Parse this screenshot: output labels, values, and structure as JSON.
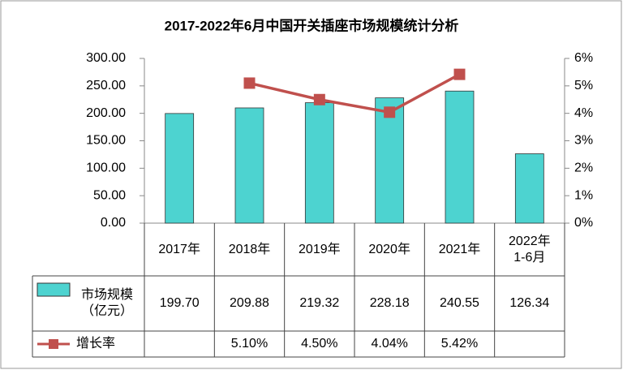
{
  "chart_data": {
    "type": "bar_line_table",
    "title": "2017-2022年6月中国开关插座市场规模统计分析",
    "categories": [
      "2017年",
      "2018年",
      "2019年",
      "2020年",
      "2021年",
      "2022年1-6月"
    ],
    "series": [
      {
        "name": "市场规模（亿元）",
        "type": "bar",
        "color": "#4dd3d0",
        "values": [
          199.7,
          209.88,
          219.32,
          228.18,
          240.55,
          126.34
        ],
        "value_labels": [
          "199.70",
          "209.88",
          "219.32",
          "228.18",
          "240.55",
          "126.34"
        ]
      },
      {
        "name": "增长率",
        "type": "line",
        "axis": "y2",
        "color": "#c0504d",
        "values": [
          null,
          5.1,
          4.5,
          4.04,
          5.42,
          null
        ],
        "value_labels": [
          null,
          "5.10%",
          "4.50%",
          "4.04%",
          "5.42%",
          null
        ]
      }
    ],
    "ylim": [
      0,
      300
    ],
    "yticks": [
      {
        "value": 0,
        "label": "0.00"
      },
      {
        "value": 50,
        "label": "50.00"
      },
      {
        "value": 100,
        "label": "100.00"
      },
      {
        "value": 150,
        "label": "150.00"
      },
      {
        "value": 200,
        "label": "200.00"
      },
      {
        "value": 250,
        "label": "250.00"
      },
      {
        "value": 300,
        "label": "300.00"
      }
    ],
    "y2lim": [
      0,
      6
    ],
    "y2ticks": [
      {
        "value": 0,
        "label": "0%"
      },
      {
        "value": 1,
        "label": "1%"
      },
      {
        "value": 2,
        "label": "2%"
      },
      {
        "value": 3,
        "label": "3%"
      },
      {
        "value": 4,
        "label": "4%"
      },
      {
        "value": 5,
        "label": "5%"
      },
      {
        "value": 6,
        "label": "6%"
      }
    ],
    "grid": false
  }
}
